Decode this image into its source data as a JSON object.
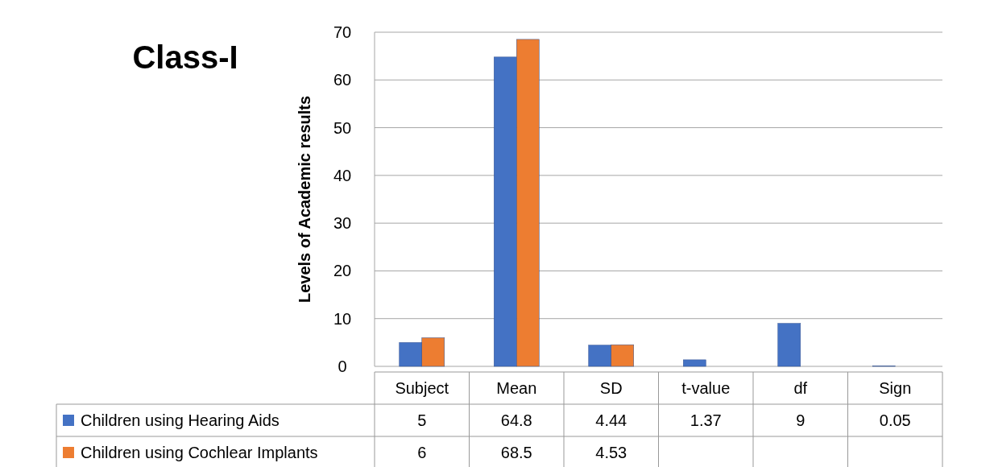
{
  "chart_data": {
    "type": "bar",
    "title": "Class-I",
    "ylabel": "Levels of Academic results",
    "categories": [
      "Subject",
      "Mean",
      "SD",
      "t-value",
      "df",
      "Sign"
    ],
    "series": [
      {
        "name": "Children using Hearing Aids",
        "color": "#4472c4",
        "values": [
          5,
          64.8,
          4.44,
          1.37,
          9,
          0.05
        ]
      },
      {
        "name": "Children using Cochlear Implants",
        "color": "#ed7d31",
        "values": [
          6,
          68.5,
          4.53,
          null,
          null,
          null
        ]
      }
    ],
    "ylim": [
      0,
      70
    ],
    "yticks": [
      0,
      10,
      20,
      30,
      40,
      50,
      60,
      70
    ],
    "grid": "y",
    "legend": "bottom",
    "data_labels": true
  }
}
